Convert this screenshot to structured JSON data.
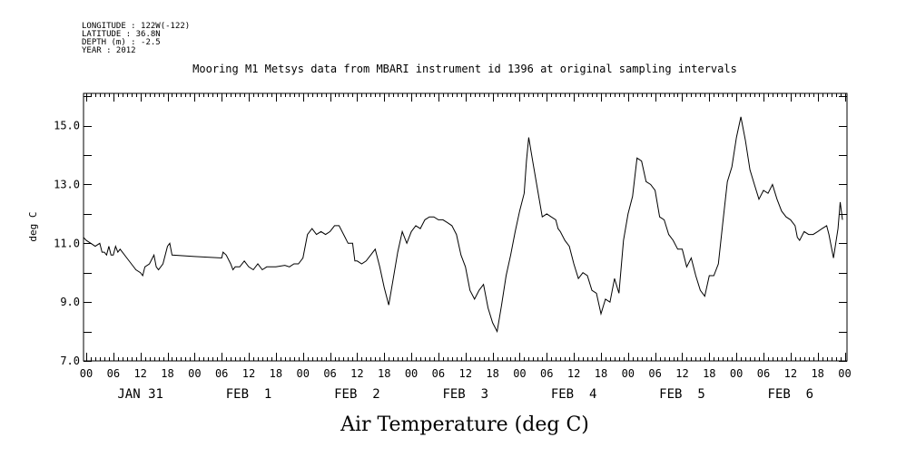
{
  "header": {
    "longitude": "LONGITUDE : 122W(-122)",
    "latitude": "LATITUDE : 36.8N",
    "depth": "DEPTH (m) : -2.5",
    "year": "YEAR : 2012"
  },
  "chart_data": {
    "type": "line",
    "title": "Mooring M1 Metsys data from MBARI instrument id 1396 at original sampling intervals",
    "xlabel": "Air Temperature (deg C)",
    "ylabel": "deg C",
    "xlim": [
      -0.6,
      168.5
    ],
    "ylim": [
      7.0,
      16.1
    ],
    "yticks": [
      7.0,
      9.0,
      11.0,
      13.0,
      15.0
    ],
    "ytick_labels": [
      "7.0",
      "9.0",
      "11.0",
      "13.0",
      "15.0"
    ],
    "x_units": "hours since JAN 31 2012 00:00",
    "hour_tick_labels": [
      "00",
      "06",
      "12",
      "18",
      "00",
      "06",
      "12",
      "18",
      "00",
      "06",
      "12",
      "18",
      "00",
      "06",
      "12",
      "18",
      "00",
      "06",
      "12",
      "18",
      "00",
      "06",
      "12",
      "18",
      "00",
      "06",
      "12",
      "18",
      "00"
    ],
    "date_labels": [
      "JAN 31",
      "FEB  1",
      "FEB  2",
      "FEB  3",
      "FEB  4",
      "FEB  5",
      "FEB  6"
    ],
    "grid": false,
    "series": [
      {
        "points": [
          [
            -1.5,
            11.2
          ],
          [
            0,
            11.1
          ],
          [
            1,
            11.0
          ],
          [
            2,
            10.9
          ],
          [
            3,
            11.0
          ],
          [
            3.5,
            10.7
          ],
          [
            4,
            10.7
          ],
          [
            4.5,
            10.6
          ],
          [
            5,
            10.9
          ],
          [
            5.5,
            10.6
          ],
          [
            6,
            10.6
          ],
          [
            6.5,
            10.9
          ],
          [
            7,
            10.7
          ],
          [
            7.5,
            10.8
          ],
          [
            8,
            10.7
          ],
          [
            9,
            10.5
          ],
          [
            10,
            10.3
          ],
          [
            11,
            10.1
          ],
          [
            12,
            10.0
          ],
          [
            12.5,
            9.9
          ],
          [
            13,
            10.2
          ],
          [
            14,
            10.3
          ],
          [
            15,
            10.6
          ],
          [
            15.5,
            10.2
          ],
          [
            16,
            10.1
          ],
          [
            17,
            10.3
          ],
          [
            18,
            10.9
          ],
          [
            18.5,
            11.0
          ],
          [
            19,
            10.6
          ],
          [
            24,
            10.55
          ],
          [
            30,
            10.5
          ],
          [
            30.3,
            10.7
          ],
          [
            31,
            10.6
          ],
          [
            32,
            10.3
          ],
          [
            32.5,
            10.1
          ],
          [
            33,
            10.2
          ],
          [
            34,
            10.2
          ],
          [
            35,
            10.4
          ],
          [
            36,
            10.2
          ],
          [
            37,
            10.1
          ],
          [
            38,
            10.3
          ],
          [
            39,
            10.1
          ],
          [
            40,
            10.2
          ],
          [
            42,
            10.2
          ],
          [
            44,
            10.25
          ],
          [
            45,
            10.2
          ],
          [
            46,
            10.3
          ],
          [
            47,
            10.3
          ],
          [
            48,
            10.5
          ],
          [
            49,
            11.3
          ],
          [
            50,
            11.5
          ],
          [
            51,
            11.3
          ],
          [
            52,
            11.4
          ],
          [
            53,
            11.3
          ],
          [
            54,
            11.4
          ],
          [
            55,
            11.6
          ],
          [
            56,
            11.6
          ],
          [
            57,
            11.3
          ],
          [
            58,
            11.0
          ],
          [
            59,
            11.0
          ],
          [
            59.5,
            10.4
          ],
          [
            60,
            10.4
          ],
          [
            61,
            10.3
          ],
          [
            62,
            10.4
          ],
          [
            63,
            10.6
          ],
          [
            64,
            10.8
          ],
          [
            65,
            10.2
          ],
          [
            66,
            9.5
          ],
          [
            67,
            8.9
          ],
          [
            68,
            9.8
          ],
          [
            69,
            10.7
          ],
          [
            70,
            11.4
          ],
          [
            71,
            11.0
          ],
          [
            72,
            11.4
          ],
          [
            73,
            11.6
          ],
          [
            74,
            11.5
          ],
          [
            75,
            11.8
          ],
          [
            76,
            11.9
          ],
          [
            77,
            11.9
          ],
          [
            78,
            11.8
          ],
          [
            79,
            11.8
          ],
          [
            80,
            11.7
          ],
          [
            81,
            11.6
          ],
          [
            82,
            11.3
          ],
          [
            83,
            10.6
          ],
          [
            84,
            10.2
          ],
          [
            85,
            9.4
          ],
          [
            86,
            9.1
          ],
          [
            87,
            9.4
          ],
          [
            88,
            9.6
          ],
          [
            89,
            8.8
          ],
          [
            90,
            8.3
          ],
          [
            91,
            8.0
          ],
          [
            92,
            8.9
          ],
          [
            93,
            9.9
          ],
          [
            94,
            10.6
          ],
          [
            95,
            11.4
          ],
          [
            96,
            12.1
          ],
          [
            97,
            12.7
          ],
          [
            97.5,
            13.8
          ],
          [
            98,
            14.6
          ],
          [
            99,
            13.7
          ],
          [
            100,
            12.8
          ],
          [
            101,
            11.9
          ],
          [
            102,
            12.0
          ],
          [
            103,
            11.9
          ],
          [
            104,
            11.8
          ],
          [
            104.5,
            11.5
          ],
          [
            105,
            11.4
          ],
          [
            106,
            11.1
          ],
          [
            107,
            10.9
          ],
          [
            108,
            10.3
          ],
          [
            109,
            9.8
          ],
          [
            110,
            10.0
          ],
          [
            111,
            9.9
          ],
          [
            112,
            9.4
          ],
          [
            113,
            9.3
          ],
          [
            114,
            8.6
          ],
          [
            115,
            9.1
          ],
          [
            116,
            9.0
          ],
          [
            117,
            9.8
          ],
          [
            118,
            9.3
          ],
          [
            119,
            11.1
          ],
          [
            120,
            12.0
          ],
          [
            121,
            12.6
          ],
          [
            122,
            13.9
          ],
          [
            123,
            13.8
          ],
          [
            124,
            13.1
          ],
          [
            125,
            13.0
          ],
          [
            126,
            12.8
          ],
          [
            127,
            11.9
          ],
          [
            128,
            11.8
          ],
          [
            129,
            11.3
          ],
          [
            130,
            11.1
          ],
          [
            131,
            10.8
          ],
          [
            132,
            10.8
          ],
          [
            133,
            10.2
          ],
          [
            134,
            10.5
          ],
          [
            135,
            9.9
          ],
          [
            136,
            9.4
          ],
          [
            137,
            9.2
          ],
          [
            138,
            9.9
          ],
          [
            139,
            9.9
          ],
          [
            140,
            10.3
          ],
          [
            141,
            11.7
          ],
          [
            142,
            13.1
          ],
          [
            143,
            13.6
          ],
          [
            144,
            14.6
          ],
          [
            145,
            15.3
          ],
          [
            146,
            14.5
          ],
          [
            147,
            13.5
          ],
          [
            148,
            13.0
          ],
          [
            149,
            12.5
          ],
          [
            150,
            12.8
          ],
          [
            151,
            12.7
          ],
          [
            152,
            13.0
          ],
          [
            153,
            12.5
          ],
          [
            154,
            12.1
          ],
          [
            155,
            11.9
          ],
          [
            156,
            11.8
          ],
          [
            157,
            11.6
          ],
          [
            157.5,
            11.2
          ],
          [
            158,
            11.1
          ],
          [
            159,
            11.4
          ],
          [
            160,
            11.3
          ],
          [
            161,
            11.3
          ],
          [
            162,
            11.4
          ],
          [
            163,
            11.5
          ],
          [
            164,
            11.6
          ],
          [
            164.5,
            11.3
          ],
          [
            165,
            10.9
          ],
          [
            165.5,
            10.5
          ],
          [
            166,
            11.0
          ],
          [
            166.5,
            11.5
          ],
          [
            167,
            12.4
          ],
          [
            167.5,
            11.8
          ]
        ]
      }
    ]
  }
}
